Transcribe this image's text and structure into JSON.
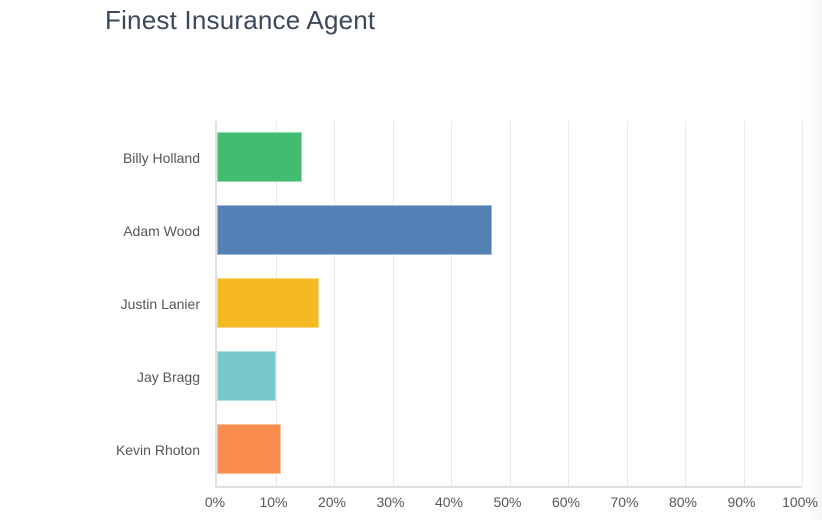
{
  "chart_data": {
    "type": "bar",
    "orientation": "horizontal",
    "title": "Finest Insurance Agent",
    "categories": [
      "Billy Holland",
      "Adam Wood",
      "Justin Lanier",
      "Jay Bragg",
      "Kevin Rhoton"
    ],
    "values": [
      14.5,
      47,
      17.5,
      10,
      11
    ],
    "unit": "%",
    "xlabel": "",
    "ylabel": "",
    "x_ticks": [
      "0%",
      "10%",
      "20%",
      "30%",
      "40%",
      "50%",
      "60%",
      "70%",
      "80%",
      "90%",
      "100%"
    ],
    "xlim": [
      0,
      100
    ],
    "grid": true,
    "legend": "none",
    "bar_colors": [
      "#41bc70",
      "#5381b5",
      "#f5ba21",
      "#77c8cc",
      "#f98d50"
    ]
  },
  "colors": {
    "title_text": "#3b4a5b",
    "label_text": "#55565a",
    "gridline": "#e9e9e9",
    "axis_line": "#e0e0e0",
    "background": "#ffffff"
  }
}
